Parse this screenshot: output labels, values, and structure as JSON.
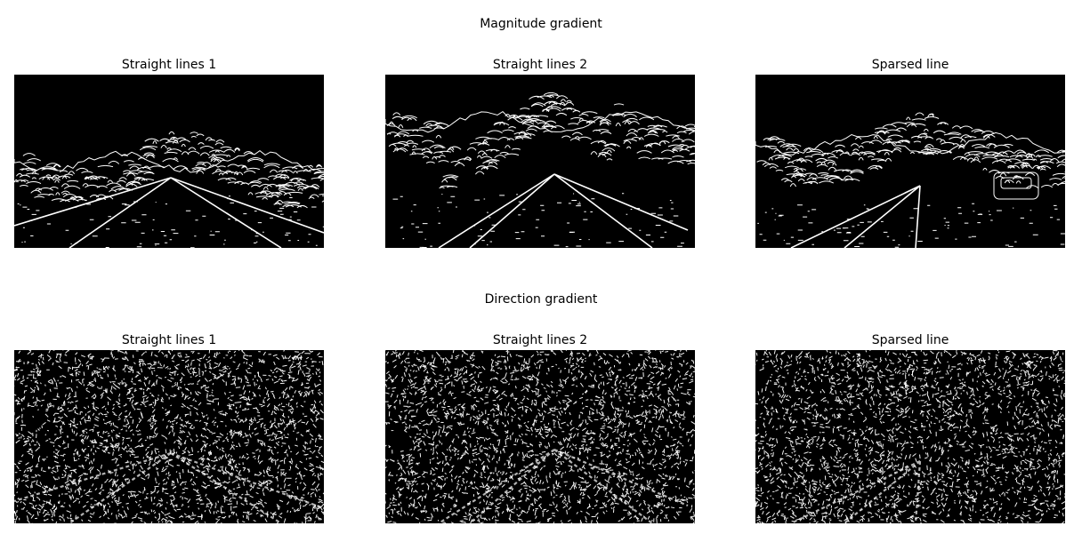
{
  "figure": {
    "sections": [
      {
        "title": "Magnitude gradient",
        "style": "sparse-edges",
        "panels": [
          {
            "title": "Straight lines 1",
            "scene": "straight1"
          },
          {
            "title": "Straight lines 2",
            "scene": "straight2"
          },
          {
            "title": "Sparsed line",
            "scene": "sparse"
          }
        ]
      },
      {
        "title": "Direction gradient",
        "style": "dense-noise",
        "panels": [
          {
            "title": "Straight lines 1",
            "scene": "straight1"
          },
          {
            "title": "Straight lines 2",
            "scene": "straight2"
          },
          {
            "title": "Sparsed line",
            "scene": "sparse"
          }
        ]
      }
    ],
    "colors": {
      "background": "#ffffff",
      "image_bg": "#000000",
      "edges": "#ffffff"
    }
  }
}
